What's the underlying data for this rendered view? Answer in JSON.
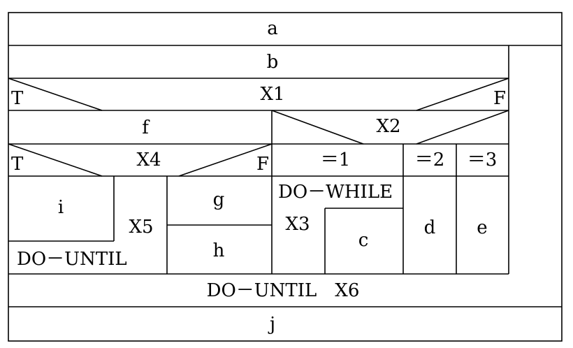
{
  "nodes": {
    "a": "a",
    "b": "b",
    "x1": "X1",
    "x1_true": "T",
    "x1_false": "F",
    "f": "f",
    "x2": "X2",
    "x2_case1": "＝1",
    "x2_case2": "＝2",
    "x2_case3": "＝3",
    "x4": "X4",
    "x4_true": "T",
    "x4_false": "F",
    "i": "i",
    "x5": "X5",
    "do_until_inner": "DO－UNTIL",
    "g": "g",
    "h": "h",
    "do_while": "DO－WHILE",
    "x3": "X3",
    "c": "c",
    "d": "d",
    "e": "e",
    "do_until_x6": "DO－UNTIL　X6",
    "j": "j"
  }
}
